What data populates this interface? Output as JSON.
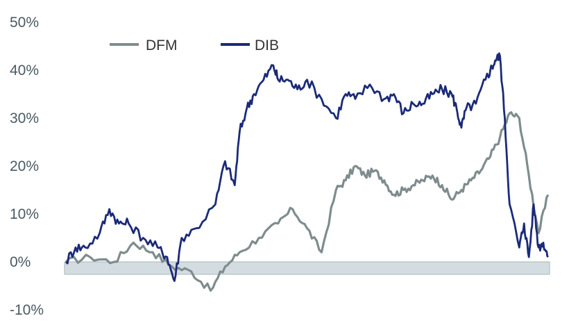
{
  "chart_data": {
    "type": "line",
    "title": "",
    "xlabel": "",
    "ylabel": "",
    "ylim": [
      -10,
      50
    ],
    "yticks": [
      "50%",
      "40%",
      "30%",
      "20%",
      "10%",
      "0%",
      "-10%"
    ],
    "grid": false,
    "legend": "top-left",
    "series": [
      {
        "name": "DFM",
        "color": "#7f8c8d",
        "x": [
          0,
          5,
          10,
          14,
          18,
          22,
          26,
          30,
          33,
          36,
          40,
          44,
          47,
          50,
          53,
          56,
          58,
          60,
          62,
          64,
          66,
          68,
          70,
          72,
          74,
          76,
          78,
          80,
          82,
          84,
          86,
          88,
          90,
          92,
          94,
          96,
          98,
          100
        ],
        "values": [
          0,
          1,
          0,
          4,
          2,
          -1,
          -2,
          -6,
          -1,
          2,
          5,
          8,
          11,
          7,
          2,
          15,
          17,
          20,
          18,
          19,
          17,
          14,
          15,
          16,
          17,
          18,
          16,
          13,
          15,
          17,
          19,
          22,
          26,
          31,
          30,
          18,
          6,
          14
        ]
      },
      {
        "name": "DIB",
        "color": "#1b2a78",
        "x": [
          0,
          2,
          4,
          7,
          9,
          11,
          13,
          16,
          19,
          21,
          22.5,
          24,
          27,
          31,
          33,
          35,
          36,
          37.5,
          39,
          41,
          43,
          44,
          46,
          48,
          50,
          53,
          56,
          58,
          60,
          63,
          66,
          68,
          70,
          72,
          74,
          76,
          78,
          80,
          81,
          82,
          83,
          85,
          87,
          88,
          89,
          90,
          91,
          92,
          94,
          95,
          96,
          97,
          98,
          99,
          100
        ],
        "values": [
          0,
          3,
          3,
          6,
          11,
          8,
          8,
          5,
          3,
          1,
          -4,
          5,
          7,
          12,
          21,
          16,
          27,
          32,
          35,
          38,
          41,
          38,
          38,
          36,
          38,
          34,
          30,
          35,
          34,
          37,
          34,
          35,
          31,
          33,
          33,
          35,
          36,
          35,
          32,
          28,
          32,
          33,
          38,
          40,
          42,
          43,
          30,
          12,
          3,
          8,
          1,
          12,
          3,
          4,
          1
        ]
      }
    ]
  }
}
